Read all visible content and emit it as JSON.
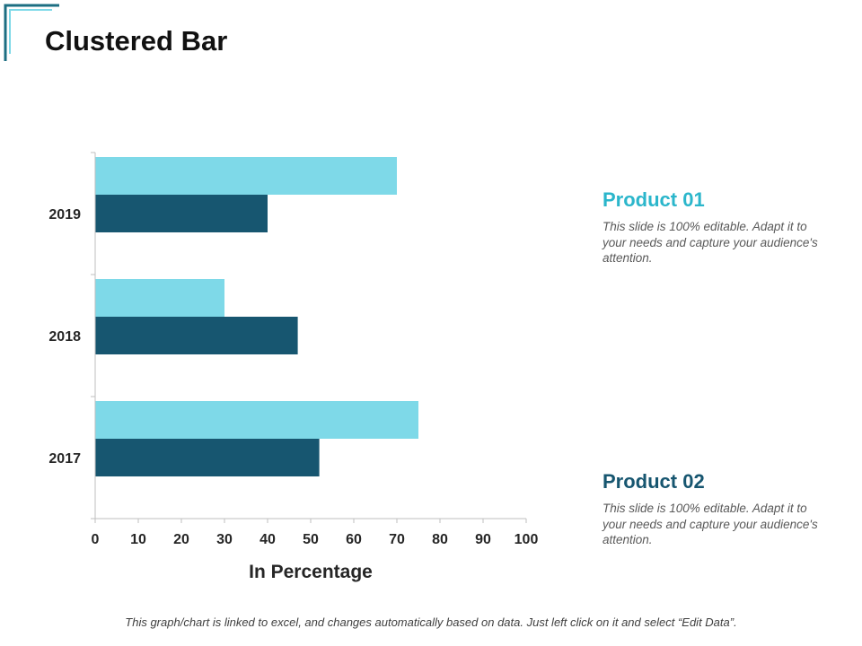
{
  "slide": {
    "title": "Clustered Bar",
    "footer": "This graph/chart is linked to excel, and changes automatically based on data. Just left click on it and select “Edit Data”."
  },
  "colors": {
    "product01": "#7ED9E8",
    "product02": "#175670",
    "corner": "#1C6E82",
    "axis": "#BFBFBF",
    "text": "#262626"
  },
  "legend": [
    {
      "name": "Product 01",
      "color": "#2BB6CB",
      "description": "This slide is 100% editable. Adapt it to your needs and capture your audience's attention."
    },
    {
      "name": "Product 02",
      "color": "#175670",
      "description": "This slide is 100% editable. Adapt it to your needs and capture your audience's attention."
    }
  ],
  "chart_data": {
    "type": "bar",
    "orientation": "horizontal",
    "categories": [
      "2019",
      "2018",
      "2017"
    ],
    "series": [
      {
        "name": "Product 01",
        "values": [
          70,
          30,
          75
        ]
      },
      {
        "name": "Product 02",
        "values": [
          40,
          47,
          52
        ]
      }
    ],
    "xlabel": "In Percentage",
    "ylabel": "",
    "xlim": [
      0,
      100
    ],
    "xticks": [
      "0",
      "10",
      "20",
      "30",
      "40",
      "50",
      "60",
      "70",
      "80",
      "90",
      "100"
    ],
    "grid": false,
    "legend": "right"
  }
}
